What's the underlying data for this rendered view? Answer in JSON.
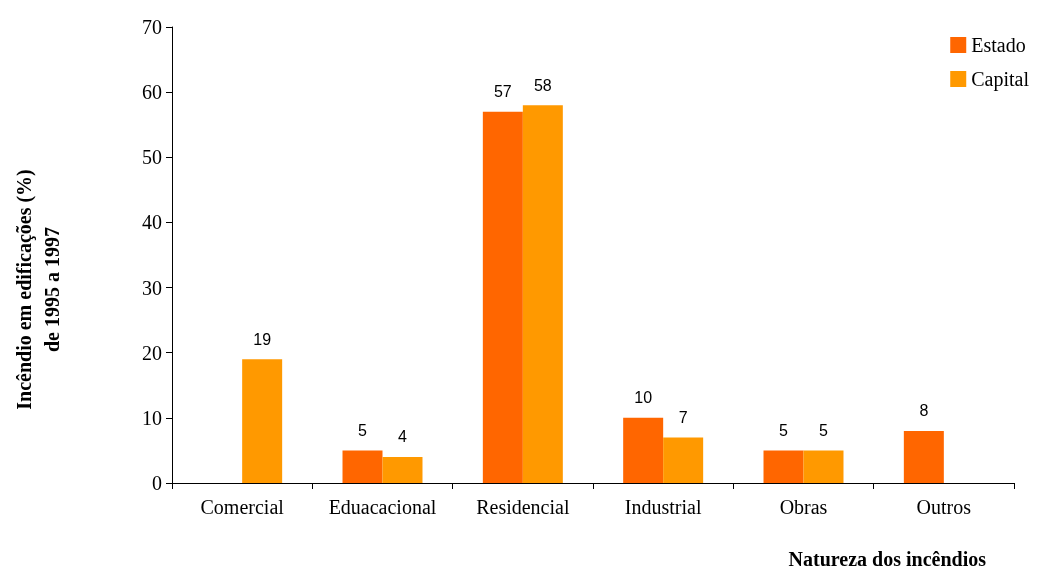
{
  "chart_data": {
    "type": "bar",
    "xlabel": "Natureza dos incêndios",
    "ylabel": "Incêndio em edificações (%)\nde 1995 a 1997",
    "categories": [
      "Comercial",
      "Eduacacional",
      "Residencial",
      "Industrial",
      "Obras",
      "Outros"
    ],
    "series": [
      {
        "name": "Estado",
        "color": "#ff6600",
        "values": [
          null,
          5,
          57,
          10,
          5,
          8
        ]
      },
      {
        "name": "Capital",
        "color": "#ff9900",
        "values": [
          19,
          4,
          58,
          7,
          5,
          null
        ]
      }
    ],
    "ylim": [
      0,
      70
    ],
    "yticks": [
      0,
      10,
      20,
      30,
      40,
      50,
      60,
      70
    ],
    "data_labels": true,
    "legend": "top right",
    "grid": false
  }
}
